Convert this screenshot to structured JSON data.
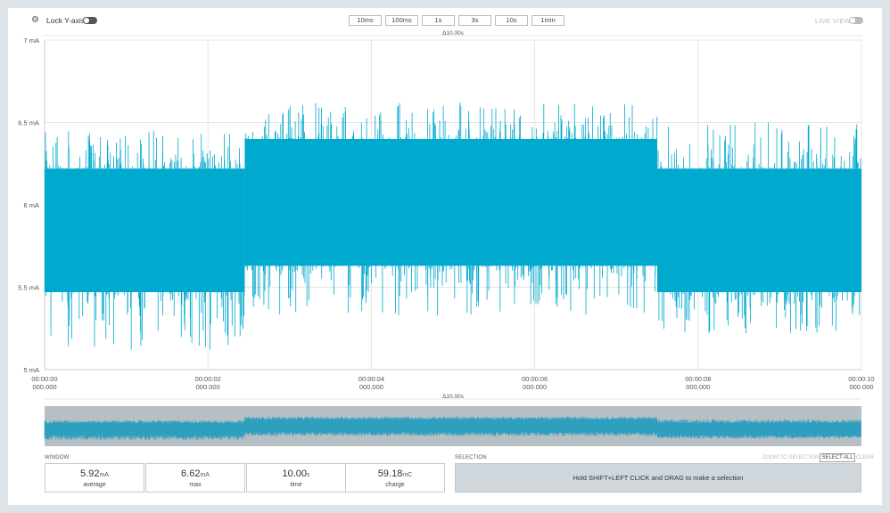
{
  "toolbar": {
    "settings_icon": "gear-icon",
    "lock_label": "Lock Y-axis",
    "lock_enabled": false,
    "live_label": "LIVE VIEW",
    "live_enabled": false,
    "window_buttons": [
      "10ms",
      "100ms",
      "1s",
      "3s",
      "10s",
      "1min"
    ]
  },
  "chart": {
    "window_delta": "Δ10.00s",
    "y_ticks": [
      "7 mA",
      "6.5 mA",
      "6 mA",
      "5.5 mA",
      "5 mA"
    ],
    "x_ticks": [
      {
        "time": "00:00:00",
        "sub": "000.000"
      },
      {
        "time": "00:00:02",
        "sub": "000.000"
      },
      {
        "time": "00:00:04",
        "sub": "000.000"
      },
      {
        "time": "00:00:06",
        "sub": "000.000"
      },
      {
        "time": "00:00:08",
        "sub": "000.000"
      },
      {
        "time": "00:00:10",
        "sub": "000.000"
      }
    ],
    "color": "#00a9ce"
  },
  "chart_data": {
    "type": "area",
    "xlabel": "",
    "ylabel": "",
    "ylim": [
      5.0,
      7.0
    ],
    "xlim": [
      0,
      10
    ],
    "x_unit": "s",
    "y_unit": "mA",
    "grid": true,
    "series": [
      {
        "segments": [
          {
            "x_start": 0.0,
            "x_end": 2.45,
            "band_low": 5.47,
            "band_high": 6.22,
            "spike_min": 5.12,
            "spike_max": 6.45
          },
          {
            "x_start": 2.45,
            "x_end": 7.5,
            "band_low": 5.63,
            "band_high": 6.4,
            "spike_min": 5.33,
            "spike_max": 6.62
          },
          {
            "x_start": 7.5,
            "x_end": 10.0,
            "band_low": 5.47,
            "band_high": 6.22,
            "spike_min": 5.22,
            "spike_max": 6.5
          }
        ]
      }
    ]
  },
  "overview": {
    "window_delta": "Δ10.00s",
    "background": "#b6bfc4",
    "color": "#2f9fc0"
  },
  "window": {
    "label": "WINDOW",
    "stats": [
      {
        "value": "5.92",
        "unit": "mA",
        "label": "average"
      },
      {
        "value": "6.62",
        "unit": "mA",
        "label": "max"
      },
      {
        "value": "10.00",
        "unit": "s",
        "label": "time"
      },
      {
        "value": "59.18",
        "unit": "mC",
        "label": "charge"
      }
    ]
  },
  "selection": {
    "label": "SELECTION",
    "zoom_label": "ZOOM TO SELECTION",
    "select_all_label": "SELECT ALL",
    "clear_label": "CLEAR",
    "hint": "Hold SHIFT+LEFT CLICK and DRAG to make a selection"
  }
}
